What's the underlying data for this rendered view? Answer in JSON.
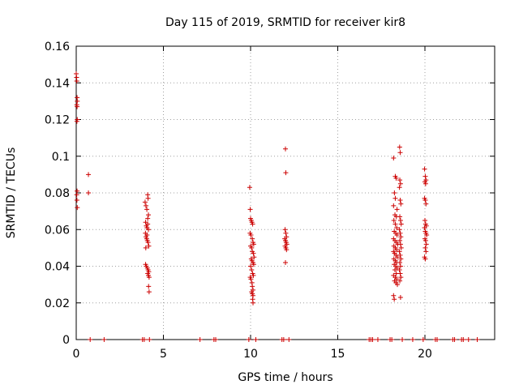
{
  "chart_data": {
    "type": "scatter",
    "title": "Day 115 of 2019, SRMTID for receiver kir8",
    "xlabel": "GPS time / hours",
    "ylabel": "SRMTID / TECUs",
    "xlim": [
      0,
      24
    ],
    "ylim": [
      0,
      0.16
    ],
    "xticks": [
      0,
      5,
      10,
      15,
      20
    ],
    "xtick_labels": [
      "0",
      "5",
      "10",
      "15",
      "20"
    ],
    "yticks": [
      0,
      0.02,
      0.04,
      0.06,
      0.08,
      0.1,
      0.12,
      0.14,
      0.16
    ],
    "ytick_labels": [
      "0",
      "0.02",
      "0.04",
      "0.06",
      "0.08",
      "0.1",
      "0.12",
      "0.14",
      "0.16"
    ],
    "grid": true,
    "marker": "+",
    "color": "#cc0000",
    "series": [
      {
        "name": "SRMTID",
        "points": [
          [
            0.0,
            0.145
          ],
          [
            0.02,
            0.143
          ],
          [
            0.03,
            0.141
          ],
          [
            0.05,
            0.132
          ],
          [
            0.06,
            0.13
          ],
          [
            0.03,
            0.128
          ],
          [
            0.05,
            0.127
          ],
          [
            0.06,
            0.12
          ],
          [
            0.04,
            0.119
          ],
          [
            0.05,
            0.081
          ],
          [
            0.03,
            0.079
          ],
          [
            0.04,
            0.076
          ],
          [
            0.06,
            0.072
          ],
          [
            0.7,
            0.09
          ],
          [
            0.7,
            0.08
          ],
          [
            3.95,
            0.075
          ],
          [
            4.0,
            0.073
          ],
          [
            4.05,
            0.071
          ],
          [
            4.1,
            0.079
          ],
          [
            4.12,
            0.077
          ],
          [
            3.98,
            0.064
          ],
          [
            4.02,
            0.062
          ],
          [
            4.06,
            0.061
          ],
          [
            4.1,
            0.063
          ],
          [
            4.14,
            0.06
          ],
          [
            3.97,
            0.058
          ],
          [
            4.0,
            0.056
          ],
          [
            4.04,
            0.055
          ],
          [
            4.08,
            0.054
          ],
          [
            4.12,
            0.053
          ],
          [
            4.16,
            0.051
          ],
          [
            3.99,
            0.05
          ],
          [
            4.06,
            0.057
          ],
          [
            4.1,
            0.066
          ],
          [
            4.14,
            0.068
          ],
          [
            3.98,
            0.041
          ],
          [
            4.02,
            0.04
          ],
          [
            4.08,
            0.039
          ],
          [
            4.12,
            0.038
          ],
          [
            4.16,
            0.037
          ],
          [
            4.1,
            0.036
          ],
          [
            4.14,
            0.035
          ],
          [
            4.18,
            0.034
          ],
          [
            4.15,
            0.029
          ],
          [
            4.18,
            0.026
          ],
          [
            9.95,
            0.083
          ],
          [
            9.98,
            0.071
          ],
          [
            10.0,
            0.066
          ],
          [
            10.04,
            0.065
          ],
          [
            10.08,
            0.064
          ],
          [
            10.12,
            0.063
          ],
          [
            9.97,
            0.058
          ],
          [
            10.02,
            0.057
          ],
          [
            10.1,
            0.055
          ],
          [
            10.14,
            0.053
          ],
          [
            10.18,
            0.052
          ],
          [
            10.0,
            0.051
          ],
          [
            10.06,
            0.05
          ],
          [
            10.1,
            0.048
          ],
          [
            10.16,
            0.047
          ],
          [
            10.2,
            0.045
          ],
          [
            10.04,
            0.044
          ],
          [
            10.08,
            0.043
          ],
          [
            10.14,
            0.042
          ],
          [
            10.18,
            0.041
          ],
          [
            10.0,
            0.04
          ],
          [
            10.06,
            0.038
          ],
          [
            10.12,
            0.036
          ],
          [
            10.16,
            0.035
          ],
          [
            9.98,
            0.034
          ],
          [
            10.02,
            0.033
          ],
          [
            10.08,
            0.031
          ],
          [
            10.1,
            0.029
          ],
          [
            10.14,
            0.027
          ],
          [
            10.06,
            0.026
          ],
          [
            10.1,
            0.025
          ],
          [
            10.14,
            0.024
          ],
          [
            10.12,
            0.022
          ],
          [
            10.14,
            0.02
          ],
          [
            12.0,
            0.104
          ],
          [
            12.02,
            0.091
          ],
          [
            11.98,
            0.06
          ],
          [
            12.02,
            0.058
          ],
          [
            12.06,
            0.056
          ],
          [
            11.96,
            0.055
          ],
          [
            12.0,
            0.054
          ],
          [
            12.04,
            0.053
          ],
          [
            12.08,
            0.052
          ],
          [
            11.98,
            0.051
          ],
          [
            12.02,
            0.05
          ],
          [
            12.06,
            0.049
          ],
          [
            12.0,
            0.042
          ],
          [
            18.2,
            0.099
          ],
          [
            18.3,
            0.089
          ],
          [
            18.35,
            0.088
          ],
          [
            18.25,
            0.08
          ],
          [
            18.3,
            0.077
          ],
          [
            18.2,
            0.073
          ],
          [
            18.4,
            0.071
          ],
          [
            18.28,
            0.068
          ],
          [
            18.36,
            0.067
          ],
          [
            18.22,
            0.065
          ],
          [
            18.3,
            0.063
          ],
          [
            18.38,
            0.061
          ],
          [
            18.24,
            0.059
          ],
          [
            18.32,
            0.058
          ],
          [
            18.4,
            0.057
          ],
          [
            18.2,
            0.055
          ],
          [
            18.28,
            0.054
          ],
          [
            18.36,
            0.053
          ],
          [
            18.44,
            0.052
          ],
          [
            18.22,
            0.051
          ],
          [
            18.3,
            0.05
          ],
          [
            18.38,
            0.049
          ],
          [
            18.2,
            0.048
          ],
          [
            18.26,
            0.047
          ],
          [
            18.34,
            0.046
          ],
          [
            18.42,
            0.045
          ],
          [
            18.22,
            0.044
          ],
          [
            18.3,
            0.043
          ],
          [
            18.38,
            0.042
          ],
          [
            18.24,
            0.041
          ],
          [
            18.32,
            0.04
          ],
          [
            18.4,
            0.039
          ],
          [
            18.28,
            0.038
          ],
          [
            18.36,
            0.036
          ],
          [
            18.2,
            0.035
          ],
          [
            18.3,
            0.034
          ],
          [
            18.38,
            0.033
          ],
          [
            18.26,
            0.032
          ],
          [
            18.34,
            0.031
          ],
          [
            18.42,
            0.03
          ],
          [
            18.2,
            0.024
          ],
          [
            18.24,
            0.022
          ],
          [
            18.55,
            0.105
          ],
          [
            18.58,
            0.102
          ],
          [
            18.56,
            0.087
          ],
          [
            18.6,
            0.085
          ],
          [
            18.54,
            0.083
          ],
          [
            18.58,
            0.076
          ],
          [
            18.62,
            0.074
          ],
          [
            18.56,
            0.067
          ],
          [
            18.6,
            0.065
          ],
          [
            18.64,
            0.063
          ],
          [
            18.54,
            0.06
          ],
          [
            18.58,
            0.058
          ],
          [
            18.62,
            0.056
          ],
          [
            18.56,
            0.054
          ],
          [
            18.6,
            0.052
          ],
          [
            18.64,
            0.05
          ],
          [
            18.54,
            0.048
          ],
          [
            18.58,
            0.046
          ],
          [
            18.62,
            0.044
          ],
          [
            18.56,
            0.042
          ],
          [
            18.6,
            0.04
          ],
          [
            18.54,
            0.038
          ],
          [
            18.58,
            0.036
          ],
          [
            18.62,
            0.034
          ],
          [
            18.56,
            0.032
          ],
          [
            18.6,
            0.023
          ],
          [
            19.98,
            0.093
          ],
          [
            20.02,
            0.089
          ],
          [
            20.06,
            0.087
          ],
          [
            20.0,
            0.086
          ],
          [
            20.04,
            0.085
          ],
          [
            19.98,
            0.077
          ],
          [
            20.02,
            0.076
          ],
          [
            20.06,
            0.074
          ],
          [
            20.0,
            0.065
          ],
          [
            20.04,
            0.063
          ],
          [
            20.08,
            0.062
          ],
          [
            19.98,
            0.061
          ],
          [
            20.02,
            0.059
          ],
          [
            20.06,
            0.058
          ],
          [
            20.1,
            0.057
          ],
          [
            20.0,
            0.055
          ],
          [
            20.04,
            0.054
          ],
          [
            20.08,
            0.052
          ],
          [
            20.02,
            0.05
          ],
          [
            20.06,
            0.048
          ],
          [
            19.98,
            0.045
          ],
          [
            20.02,
            0.044
          ],
          [
            0.8,
            0.0
          ],
          [
            1.6,
            0.0
          ],
          [
            3.8,
            0.0
          ],
          [
            3.9,
            0.0
          ],
          [
            4.2,
            0.0
          ],
          [
            7.1,
            0.0
          ],
          [
            7.9,
            0.0
          ],
          [
            8.0,
            0.0
          ],
          [
            9.9,
            0.0
          ],
          [
            10.3,
            0.0
          ],
          [
            11.8,
            0.0
          ],
          [
            11.9,
            0.0
          ],
          [
            12.2,
            0.0
          ],
          [
            16.8,
            0.0
          ],
          [
            16.9,
            0.0
          ],
          [
            17.0,
            0.0
          ],
          [
            17.3,
            0.0
          ],
          [
            18.0,
            0.0
          ],
          [
            18.1,
            0.0
          ],
          [
            18.7,
            0.0
          ],
          [
            19.3,
            0.0
          ],
          [
            19.9,
            0.0
          ],
          [
            20.6,
            0.0
          ],
          [
            20.7,
            0.0
          ],
          [
            21.6,
            0.0
          ],
          [
            21.7,
            0.0
          ],
          [
            22.1,
            0.0
          ],
          [
            22.2,
            0.0
          ],
          [
            22.5,
            0.0
          ],
          [
            23.0,
            0.0
          ]
        ]
      }
    ]
  }
}
